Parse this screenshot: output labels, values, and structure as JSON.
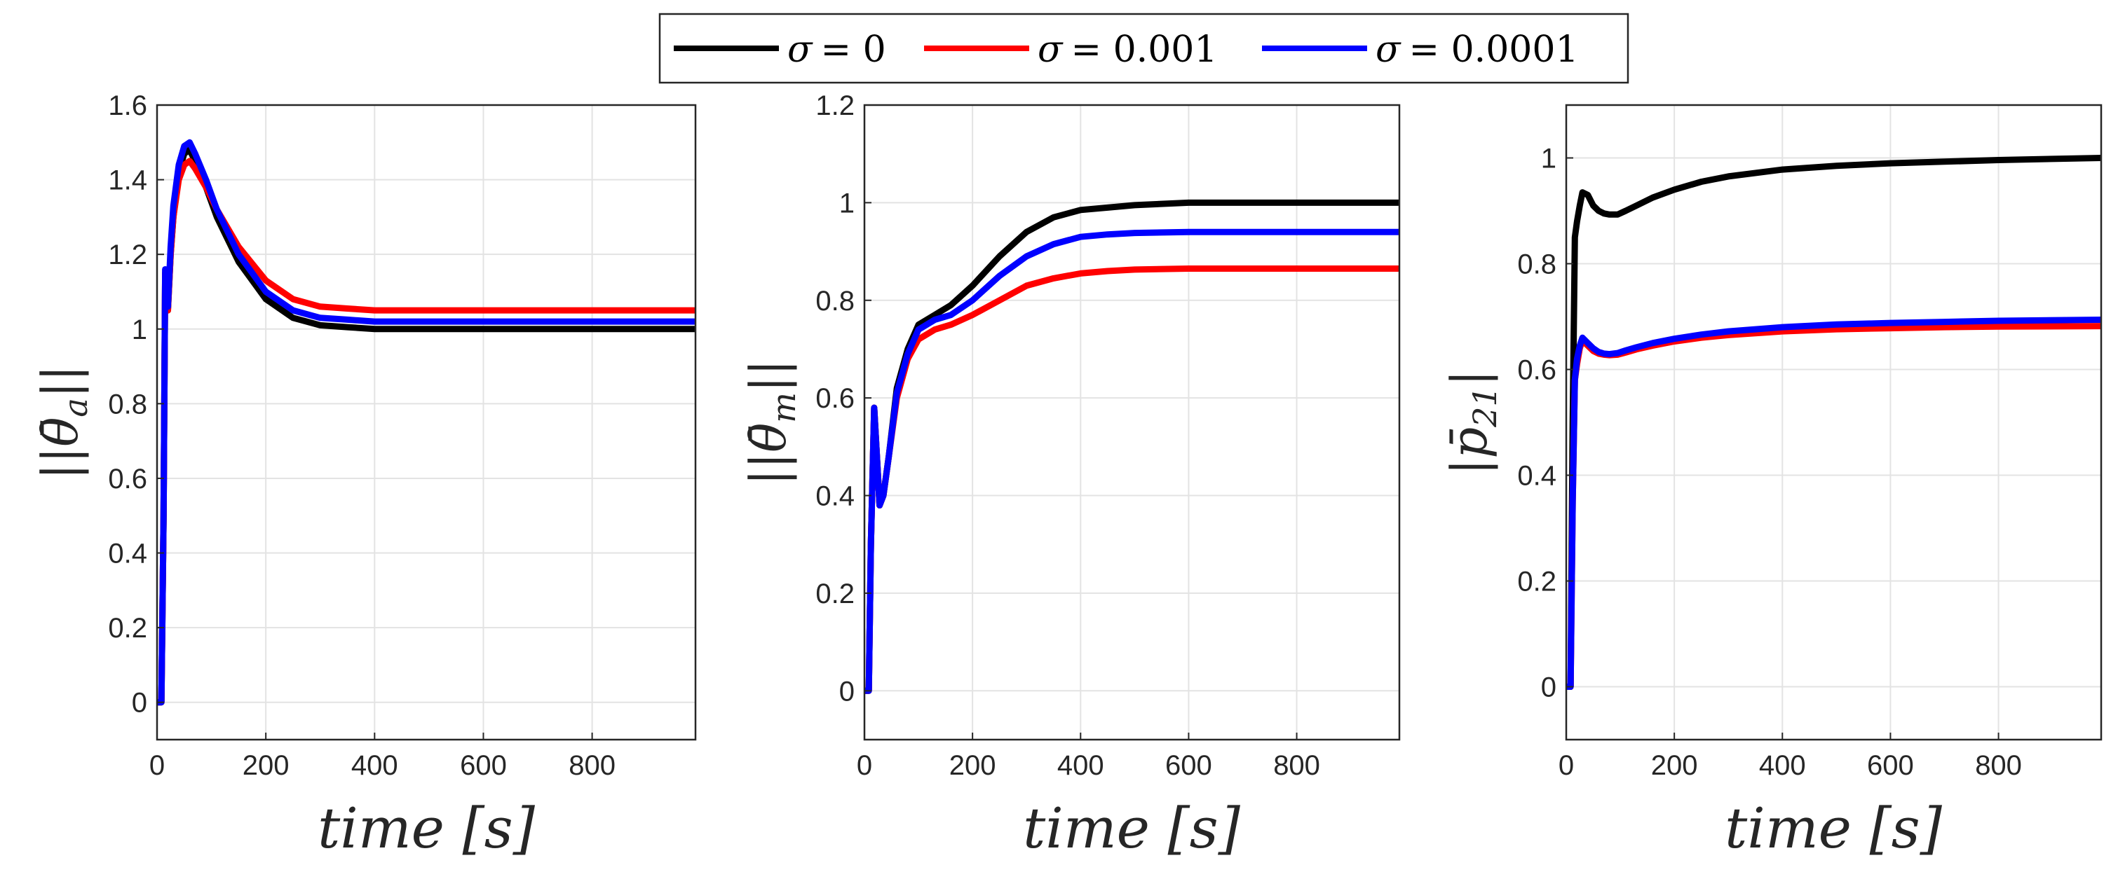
{
  "legend": [
    {
      "symbol": "σ",
      "value": "= 0",
      "color": "#000000"
    },
    {
      "symbol": "σ",
      "value": "= 0.001",
      "color": "#ff0000"
    },
    {
      "symbol": "σ",
      "value": "= 0.0001",
      "color": "#0000ff"
    }
  ],
  "chart_data": [
    {
      "type": "line",
      "title": "",
      "xlabel": "time [s]",
      "ylabel": "||θ̄a||",
      "ylabel_parts": {
        "bars": "||",
        "sym": "θ̄",
        "sub": "a"
      },
      "xlim": [
        0,
        990
      ],
      "ylim": [
        -0.1,
        1.6
      ],
      "xticks": [
        0,
        200,
        400,
        600,
        800
      ],
      "yticks": [
        0,
        0.2,
        0.4,
        0.6,
        0.8,
        1,
        1.2,
        1.4,
        1.6
      ],
      "ytick_labels": [
        "0",
        "0.2",
        "0.4",
        "0.6",
        "0.8",
        "1",
        "1.2",
        "1.4",
        "1.6"
      ],
      "grid": true,
      "series": [
        {
          "name": "σ = 0",
          "color": "#000000",
          "x": [
            0,
            8,
            12,
            15,
            20,
            25,
            30,
            40,
            50,
            60,
            70,
            90,
            110,
            150,
            200,
            250,
            300,
            350,
            400,
            500,
            600,
            700,
            800,
            990
          ],
          "y": [
            0,
            0,
            0.5,
            1.15,
            1.05,
            1.2,
            1.3,
            1.42,
            1.47,
            1.48,
            1.45,
            1.38,
            1.3,
            1.18,
            1.08,
            1.03,
            1.01,
            1.005,
            1.0,
            1.0,
            1.0,
            1.0,
            1.0,
            1.0
          ]
        },
        {
          "name": "σ = 0.001",
          "color": "#ff0000",
          "x": [
            0,
            8,
            12,
            15,
            20,
            25,
            30,
            40,
            50,
            60,
            70,
            90,
            110,
            150,
            200,
            250,
            300,
            350,
            400,
            500,
            600,
            700,
            800,
            990
          ],
          "y": [
            0,
            0,
            0.5,
            1.15,
            1.05,
            1.2,
            1.3,
            1.4,
            1.44,
            1.45,
            1.43,
            1.38,
            1.32,
            1.22,
            1.13,
            1.08,
            1.06,
            1.055,
            1.05,
            1.05,
            1.05,
            1.05,
            1.05,
            1.05
          ]
        },
        {
          "name": "σ = 0.0001",
          "color": "#0000ff",
          "x": [
            0,
            8,
            12,
            15,
            20,
            25,
            30,
            40,
            50,
            60,
            70,
            90,
            110,
            150,
            200,
            250,
            300,
            350,
            400,
            500,
            600,
            700,
            800,
            990
          ],
          "y": [
            0,
            0,
            0.5,
            1.16,
            1.06,
            1.22,
            1.33,
            1.44,
            1.49,
            1.5,
            1.47,
            1.4,
            1.32,
            1.2,
            1.1,
            1.05,
            1.03,
            1.025,
            1.02,
            1.02,
            1.02,
            1.02,
            1.02,
            1.02
          ]
        }
      ]
    },
    {
      "type": "line",
      "title": "",
      "xlabel": "time [s]",
      "ylabel": "||θ̄m||",
      "ylabel_parts": {
        "bars": "||",
        "sym": "θ̄",
        "sub": "m"
      },
      "xlim": [
        0,
        990
      ],
      "ylim": [
        -0.1,
        1.2
      ],
      "xticks": [
        0,
        200,
        400,
        600,
        800
      ],
      "yticks": [
        0,
        0.2,
        0.4,
        0.6,
        0.8,
        1,
        1.2
      ],
      "ytick_labels": [
        "0",
        "0.2",
        "0.4",
        "0.6",
        "0.8",
        "1",
        "1.2"
      ],
      "grid": true,
      "series": [
        {
          "name": "σ = 0",
          "color": "#000000",
          "x": [
            0,
            8,
            12,
            18,
            22,
            28,
            35,
            45,
            60,
            80,
            100,
            130,
            160,
            200,
            250,
            300,
            350,
            400,
            450,
            500,
            600,
            700,
            800,
            990
          ],
          "y": [
            0,
            0,
            0.3,
            0.58,
            0.5,
            0.38,
            0.4,
            0.48,
            0.62,
            0.7,
            0.75,
            0.77,
            0.79,
            0.83,
            0.89,
            0.94,
            0.97,
            0.985,
            0.99,
            0.995,
            1.0,
            1.0,
            1.0,
            1.0
          ]
        },
        {
          "name": "σ = 0.001",
          "color": "#ff0000",
          "x": [
            0,
            8,
            12,
            18,
            22,
            28,
            35,
            45,
            60,
            80,
            100,
            130,
            160,
            200,
            250,
            300,
            350,
            400,
            450,
            500,
            600,
            700,
            800,
            990
          ],
          "y": [
            0,
            0,
            0.3,
            0.58,
            0.5,
            0.38,
            0.4,
            0.48,
            0.6,
            0.68,
            0.72,
            0.74,
            0.75,
            0.77,
            0.8,
            0.83,
            0.845,
            0.855,
            0.86,
            0.863,
            0.865,
            0.865,
            0.865,
            0.865
          ]
        },
        {
          "name": "σ = 0.0001",
          "color": "#0000ff",
          "x": [
            0,
            8,
            12,
            18,
            22,
            28,
            35,
            45,
            60,
            80,
            100,
            130,
            160,
            200,
            250,
            300,
            350,
            400,
            450,
            500,
            600,
            700,
            800,
            990
          ],
          "y": [
            0,
            0,
            0.3,
            0.58,
            0.5,
            0.38,
            0.4,
            0.48,
            0.61,
            0.69,
            0.74,
            0.76,
            0.77,
            0.8,
            0.85,
            0.89,
            0.915,
            0.93,
            0.935,
            0.938,
            0.94,
            0.94,
            0.94,
            0.94
          ]
        }
      ]
    },
    {
      "type": "line",
      "title": "",
      "xlabel": "time [s]",
      "ylabel": "|p̄21|",
      "ylabel_parts": {
        "bars": "|",
        "sym": "p̄",
        "sub": "21"
      },
      "xlim": [
        0,
        990
      ],
      "ylim": [
        -0.1,
        1.1
      ],
      "xticks": [
        0,
        200,
        400,
        600,
        800
      ],
      "yticks": [
        0,
        0.2,
        0.4,
        0.6,
        0.8,
        1
      ],
      "ytick_labels": [
        "0",
        "0.2",
        "0.4",
        "0.6",
        "0.8",
        "1"
      ],
      "grid": true,
      "series": [
        {
          "name": "σ = 0",
          "color": "#000000",
          "x": [
            0,
            8,
            12,
            16,
            20,
            25,
            30,
            40,
            50,
            60,
            70,
            80,
            95,
            110,
            130,
            160,
            200,
            250,
            300,
            400,
            500,
            600,
            700,
            800,
            990
          ],
          "y": [
            0,
            0,
            0.5,
            0.85,
            0.88,
            0.91,
            0.935,
            0.93,
            0.91,
            0.9,
            0.895,
            0.893,
            0.893,
            0.9,
            0.91,
            0.925,
            0.94,
            0.955,
            0.965,
            0.978,
            0.985,
            0.99,
            0.993,
            0.996,
            1.0
          ]
        },
        {
          "name": "σ = 0.001",
          "color": "#ff0000",
          "x": [
            0,
            8,
            12,
            16,
            20,
            25,
            30,
            40,
            50,
            60,
            70,
            80,
            95,
            110,
            130,
            160,
            200,
            250,
            300,
            400,
            500,
            600,
            700,
            800,
            990
          ],
          "y": [
            0,
            0,
            0.35,
            0.58,
            0.61,
            0.64,
            0.655,
            0.645,
            0.635,
            0.63,
            0.628,
            0.627,
            0.628,
            0.632,
            0.638,
            0.645,
            0.653,
            0.66,
            0.665,
            0.672,
            0.676,
            0.678,
            0.68,
            0.681,
            0.682
          ]
        },
        {
          "name": "σ = 0.0001",
          "color": "#0000ff",
          "x": [
            0,
            8,
            12,
            16,
            20,
            25,
            30,
            40,
            50,
            60,
            70,
            80,
            95,
            110,
            130,
            160,
            200,
            250,
            300,
            400,
            500,
            600,
            700,
            800,
            990
          ],
          "y": [
            0,
            0,
            0.35,
            0.58,
            0.62,
            0.645,
            0.66,
            0.65,
            0.64,
            0.633,
            0.63,
            0.629,
            0.631,
            0.636,
            0.642,
            0.65,
            0.658,
            0.666,
            0.672,
            0.68,
            0.685,
            0.688,
            0.69,
            0.692,
            0.694
          ]
        }
      ]
    }
  ]
}
